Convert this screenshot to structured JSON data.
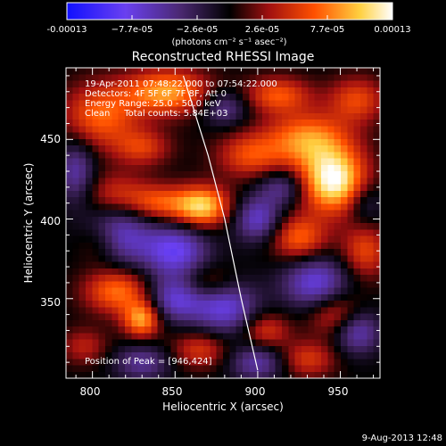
{
  "chart_data": {
    "type": "heatmap",
    "title": "Reconstructed RHESSI Image",
    "xlabel": "Heliocentric X (arcsec)",
    "ylabel": "Heliocentric Y (arcsec)",
    "xlim": [
      784,
      974
    ],
    "ylim": [
      300,
      495
    ],
    "x_ticks": [
      800,
      850,
      900,
      950
    ],
    "y_ticks": [
      350,
      400,
      450
    ],
    "colorbar": {
      "min": -0.00013,
      "max": 0.00013,
      "tick_labels": [
        "-0.00013",
        "−7.7e-05",
        "−2.6e-05",
        "2.6e-05",
        "7.7e-05",
        "0.00013"
      ],
      "unit_label": "(photons cm⁻² s⁻¹ asec⁻²)",
      "colors": [
        "#1010ff",
        "#7a3cf0",
        "#5a3080",
        "#000000",
        "#b01010",
        "#ff6000",
        "#ffd040",
        "#ffffff"
      ]
    },
    "annotations": [
      "19-Apr-2011 07:48:22.000 to 07:54:22.000",
      "Detectors: 4F 5F 6F 7F 8F, Att 0",
      "Energy Range: 25.0 - 50.0 keV",
      "Clean     Total counts: 5.84E+03"
    ],
    "peak_label": "Position of Peak = [946,424]",
    "peak_position": [
      946,
      424
    ],
    "limb_curve": {
      "description": "solar limb",
      "points": [
        [
          855,
          490
        ],
        [
          870,
          440
        ],
        [
          880,
          400
        ],
        [
          890,
          350
        ],
        [
          900,
          305
        ]
      ]
    },
    "sources": [
      {
        "x": 946,
        "y": 424,
        "sx": 14,
        "sy": 14,
        "amp": 1.0
      },
      {
        "x": 930,
        "y": 450,
        "sx": 18,
        "sy": 12,
        "amp": 0.65
      },
      {
        "x": 895,
        "y": 440,
        "sx": 14,
        "sy": 10,
        "amp": 0.45
      },
      {
        "x": 866,
        "y": 408,
        "sx": 12,
        "sy": 9,
        "amp": 0.85
      },
      {
        "x": 840,
        "y": 410,
        "sx": 12,
        "sy": 8,
        "amp": 0.45
      },
      {
        "x": 815,
        "y": 415,
        "sx": 14,
        "sy": 10,
        "amp": 0.4
      },
      {
        "x": 805,
        "y": 465,
        "sx": 16,
        "sy": 14,
        "amp": 0.55
      },
      {
        "x": 845,
        "y": 480,
        "sx": 18,
        "sy": 10,
        "amp": 0.7
      },
      {
        "x": 830,
        "y": 445,
        "sx": 12,
        "sy": 8,
        "amp": 0.4
      },
      {
        "x": 912,
        "y": 478,
        "sx": 14,
        "sy": 8,
        "amp": 0.5
      },
      {
        "x": 960,
        "y": 475,
        "sx": 12,
        "sy": 10,
        "amp": 0.45
      },
      {
        "x": 815,
        "y": 355,
        "sx": 14,
        "sy": 10,
        "amp": 0.6
      },
      {
        "x": 830,
        "y": 337,
        "sx": 8,
        "sy": 8,
        "amp": 0.7
      },
      {
        "x": 870,
        "y": 360,
        "sx": 12,
        "sy": 8,
        "amp": 0.35
      },
      {
        "x": 925,
        "y": 388,
        "sx": 12,
        "sy": 10,
        "amp": 0.55
      },
      {
        "x": 965,
        "y": 380,
        "sx": 10,
        "sy": 12,
        "amp": 0.45
      },
      {
        "x": 948,
        "y": 340,
        "sx": 12,
        "sy": 10,
        "amp": 0.45
      },
      {
        "x": 905,
        "y": 330,
        "sx": 10,
        "sy": 8,
        "amp": 0.4
      },
      {
        "x": 930,
        "y": 312,
        "sx": 12,
        "sy": 8,
        "amp": 0.4
      },
      {
        "x": 865,
        "y": 318,
        "sx": 12,
        "sy": 8,
        "amp": 0.4
      },
      {
        "x": 805,
        "y": 385,
        "sx": 10,
        "sy": 10,
        "amp": 0.35
      },
      {
        "x": 795,
        "y": 320,
        "sx": 10,
        "sy": 8,
        "amp": 0.3
      },
      {
        "x": 815,
        "y": 390,
        "sx": 14,
        "sy": 14,
        "amp": -0.6
      },
      {
        "x": 850,
        "y": 380,
        "sx": 14,
        "sy": 12,
        "amp": -0.65
      },
      {
        "x": 880,
        "y": 345,
        "sx": 14,
        "sy": 12,
        "amp": -0.6
      },
      {
        "x": 850,
        "y": 350,
        "sx": 12,
        "sy": 10,
        "amp": -0.55
      },
      {
        "x": 935,
        "y": 360,
        "sx": 14,
        "sy": 12,
        "amp": -0.6
      },
      {
        "x": 960,
        "y": 330,
        "sx": 10,
        "sy": 10,
        "amp": -0.55
      },
      {
        "x": 900,
        "y": 400,
        "sx": 10,
        "sy": 10,
        "amp": -0.55
      },
      {
        "x": 915,
        "y": 420,
        "sx": 10,
        "sy": 8,
        "amp": -0.4
      },
      {
        "x": 880,
        "y": 470,
        "sx": 10,
        "sy": 8,
        "amp": -0.4
      },
      {
        "x": 790,
        "y": 430,
        "sx": 8,
        "sy": 14,
        "amp": -0.45
      },
      {
        "x": 900,
        "y": 310,
        "sx": 12,
        "sy": 8,
        "amp": -0.45
      },
      {
        "x": 830,
        "y": 310,
        "sx": 12,
        "sy": 8,
        "amp": -0.4
      },
      {
        "x": 965,
        "y": 410,
        "sx": 8,
        "sy": 10,
        "amp": -0.3
      }
    ]
  },
  "footer": {
    "date": "9-Aug-2013 12:48"
  }
}
